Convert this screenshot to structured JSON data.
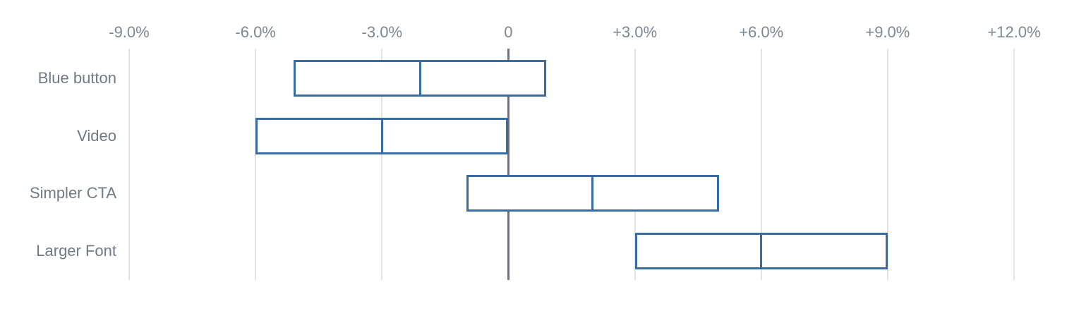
{
  "chart_data": {
    "type": "bar",
    "subtype": "horizontal-interval-range",
    "orientation": "horizontal",
    "x_unit": "%",
    "axis_range": [
      -9,
      12
    ],
    "grid": true,
    "legend_position": "none",
    "x_ticks": [
      {
        "value": -9,
        "label": "-9.0%"
      },
      {
        "value": -6,
        "label": "-6.0%"
      },
      {
        "value": -3,
        "label": "-3.0%"
      },
      {
        "value": 0,
        "label": "0"
      },
      {
        "value": 3,
        "label": "+3.0%"
      },
      {
        "value": 6,
        "label": "+6.0%"
      },
      {
        "value": 9,
        "label": "+9.0%"
      },
      {
        "value": 12,
        "label": "+12.0%"
      }
    ],
    "categories": [
      "Blue button",
      "Video",
      "Simpler CTA",
      "Larger Font"
    ],
    "bars": [
      {
        "label": "Blue button",
        "low": -5.1,
        "mid": -2.1,
        "high": 0.9
      },
      {
        "label": "Video",
        "low": -6.0,
        "mid": -3.0,
        "high": 0.0
      },
      {
        "label": "Simpler CTA",
        "low": -1.0,
        "mid": 2.0,
        "high": 5.0
      },
      {
        "label": "Larger Font",
        "low": 3.0,
        "mid": 6.0,
        "high": 9.0
      }
    ],
    "colors": {
      "bar_border": "#3b6ba3",
      "bar_fill": "#ffffff",
      "gridline": "#e3e3e3",
      "zero_line": "#6a7280",
      "tick_label": "#7d8795",
      "category_label": "#6f7a88",
      "background": "#ffffff"
    }
  }
}
